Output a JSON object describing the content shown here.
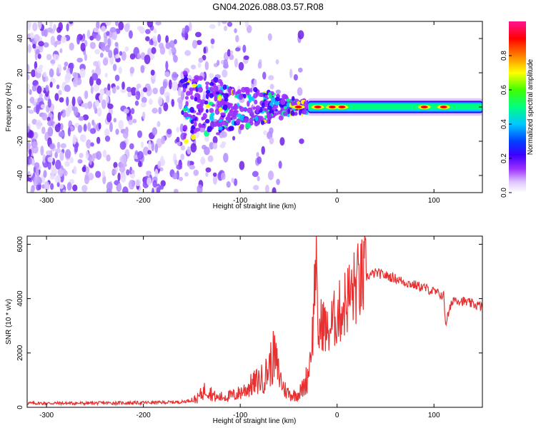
{
  "page": {
    "title": "GN04.2026.088.03.57.R08"
  },
  "colors": {
    "snr_line": "#e83030",
    "heat_low": "#e6d8ff",
    "heat_mid": "#7a3df0"
  },
  "chart_data": [
    {
      "type": "heatmap",
      "title": "GN04.2026.088.03.57.R08",
      "xlabel": "Height of straight line (km)",
      "ylabel": "Frequency (Hz)",
      "xlim": [
        -320,
        150
      ],
      "ylim": [
        -50,
        50
      ],
      "x_ticks": [
        "-300",
        "-200",
        "-100",
        "0",
        "100"
      ],
      "y_ticks": [
        "-40",
        "-20",
        "0",
        "20",
        "40"
      ],
      "colorbar": {
        "label": "Normalized spectral amplitude",
        "range": [
          0,
          1
        ],
        "ticks": [
          "0.0",
          "0.2",
          "0.4",
          "0.6",
          "0.8"
        ],
        "colormap": [
          "#ffffff",
          "#e0c8ff",
          "#9b30ff",
          "#3b00ff",
          "#0040ff",
          "#00c8ff",
          "#00ff80",
          "#40ff00",
          "#ffff00",
          "#ff8000",
          "#ff0000",
          "#ff1493"
        ]
      },
      "features": {
        "noise_region_x": [
          -320,
          -110
        ],
        "transition_region_x": [
          -160,
          -30
        ],
        "carrier_band_x": [
          -30,
          150
        ],
        "carrier_frequency_hz": 0,
        "carrier_bandwidth_hz": 6,
        "hot_spots_x": [
          -40,
          -20,
          -5,
          5,
          90,
          110
        ]
      }
    },
    {
      "type": "line",
      "xlabel": "Height of straight line (km)",
      "ylabel": "SNR (10 * v/v)",
      "xlim": [
        -320,
        150
      ],
      "ylim": [
        0,
        6300
      ],
      "x_ticks": [
        "-300",
        "-200",
        "-100",
        "0",
        "100"
      ],
      "y_ticks": [
        "0",
        "2000",
        "4000",
        "6000"
      ],
      "series": [
        {
          "x": [
            -320,
            -300,
            -280,
            -260,
            -240,
            -220,
            -200,
            -180,
            -160,
            -145,
            -135,
            -125,
            -115,
            -105,
            -95,
            -85,
            -75,
            -70,
            -65,
            -60,
            -55,
            -50,
            -45,
            -40,
            -35,
            -30,
            -25,
            -22,
            -20,
            -15,
            -10,
            -5,
            0,
            5,
            10,
            15,
            20,
            30,
            40,
            50,
            60,
            70,
            80,
            90,
            100,
            110,
            112,
            120,
            130,
            140,
            150
          ],
          "y": [
            150,
            150,
            150,
            150,
            160,
            160,
            170,
            180,
            200,
            300,
            700,
            350,
            400,
            450,
            650,
            900,
            1100,
            1500,
            1900,
            1200,
            700,
            500,
            450,
            500,
            700,
            1200,
            2800,
            5800,
            2600,
            3200,
            2700,
            3100,
            3400,
            3600,
            4000,
            4200,
            4500,
            4800,
            4950,
            4850,
            4750,
            4600,
            4500,
            4400,
            4250,
            4100,
            3100,
            4000,
            3900,
            3800,
            3700
          ]
        }
      ]
    }
  ]
}
